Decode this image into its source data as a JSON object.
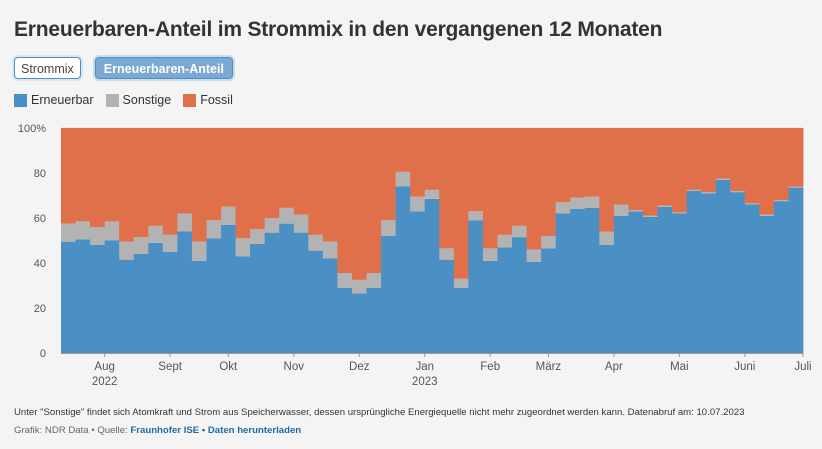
{
  "title": "Erneuerbaren-Anteil im Strommix in den vergangenen 12 Monaten",
  "tabs": [
    {
      "label": "Strommix",
      "active": false
    },
    {
      "label": "Erneuerbaren-Anteil",
      "active": true
    }
  ],
  "colors": {
    "erneuerbar": "#4a90c4",
    "sonstige": "#b3b3b3",
    "fossil": "#e0704a",
    "background": "#f4f4f4"
  },
  "footnote": "Unter \"Sonstige\" findet sich Atomkraft und Strom aus Speicherwasser, dessen ursprüngliche Energiequelle nicht mehr zugeordnet werden kann. Datenabruf am: 10.07.2023",
  "credits": {
    "prefix": "Grafik: NDR Data • Quelle:",
    "source_link": "Fraunhofer ISE",
    "separator": "•",
    "download_link": "Daten herunterladen"
  },
  "chart_data": {
    "type": "bar",
    "stacked": true,
    "unit": "%",
    "ylim": [
      0,
      100
    ],
    "yticks": [
      0,
      20,
      40,
      60,
      80,
      100
    ],
    "ytick_labels": [
      "0",
      "20",
      "40",
      "60",
      "80",
      "100%"
    ],
    "grid": true,
    "legend_placement": "top-left",
    "x_labels": [
      {
        "label": "Aug",
        "sub": "2022",
        "pos": 3
      },
      {
        "label": "Sept",
        "sub": "",
        "pos": 7.5
      },
      {
        "label": "Okt",
        "sub": "",
        "pos": 11.5
      },
      {
        "label": "Nov",
        "sub": "",
        "pos": 16
      },
      {
        "label": "Dez",
        "sub": "",
        "pos": 20.5
      },
      {
        "label": "Jan",
        "sub": "2023",
        "pos": 25
      },
      {
        "label": "Feb",
        "sub": "",
        "pos": 29.5
      },
      {
        "label": "März",
        "sub": "",
        "pos": 33.5
      },
      {
        "label": "Apr",
        "sub": "",
        "pos": 38
      },
      {
        "label": "Mai",
        "sub": "",
        "pos": 42.5
      },
      {
        "label": "Juni",
        "sub": "",
        "pos": 47
      },
      {
        "label": "Juli",
        "sub": "",
        "pos": 51
      }
    ],
    "series": [
      {
        "name": "Erneuerbar",
        "values": [
          49.5,
          50.5,
          48,
          50,
          41.5,
          44,
          49,
          45,
          54,
          41,
          51,
          57,
          43,
          48.5,
          53.5,
          57.5,
          53.5,
          45.5,
          42,
          29,
          26.5,
          29,
          52,
          74,
          63,
          68.5,
          41.5,
          29,
          59,
          41,
          47,
          51.5,
          40.5,
          46.5,
          62,
          64,
          64.5,
          48,
          61,
          63,
          60.5,
          65,
          62,
          72,
          71,
          77,
          71.5,
          66,
          61,
          67.5,
          73.5
        ]
      },
      {
        "name": "Sonstige",
        "values": [
          8,
          8,
          8,
          8.5,
          8,
          7.5,
          7.5,
          7.5,
          8,
          8.5,
          8,
          8,
          8,
          6.5,
          6.5,
          7,
          8,
          7,
          7.5,
          6.5,
          6,
          6.5,
          7,
          6.5,
          6.5,
          4,
          5,
          4,
          4,
          5.5,
          5.5,
          5,
          5.5,
          5.5,
          5,
          5,
          5,
          6,
          5,
          0.5,
          0.5,
          0.5,
          0.5,
          0.5,
          0.5,
          0.5,
          0.5,
          0.5,
          0.5,
          0.5,
          0.5
        ]
      },
      {
        "name": "Fossil",
        "values": [
          42.5,
          41.5,
          44,
          41.5,
          50.5,
          48.5,
          43.5,
          47.5,
          38,
          50.5,
          41,
          35,
          49,
          45,
          40,
          35.5,
          38.5,
          47.5,
          50.5,
          64.5,
          67.5,
          64.5,
          41,
          19.5,
          30.5,
          27.5,
          53.5,
          67,
          37,
          53.5,
          47.5,
          43.5,
          54,
          48,
          33,
          31,
          30.5,
          46,
          34,
          36.5,
          39,
          34.5,
          37.5,
          27.5,
          28.5,
          22.5,
          28,
          33.5,
          38.5,
          32,
          26
        ]
      }
    ]
  }
}
